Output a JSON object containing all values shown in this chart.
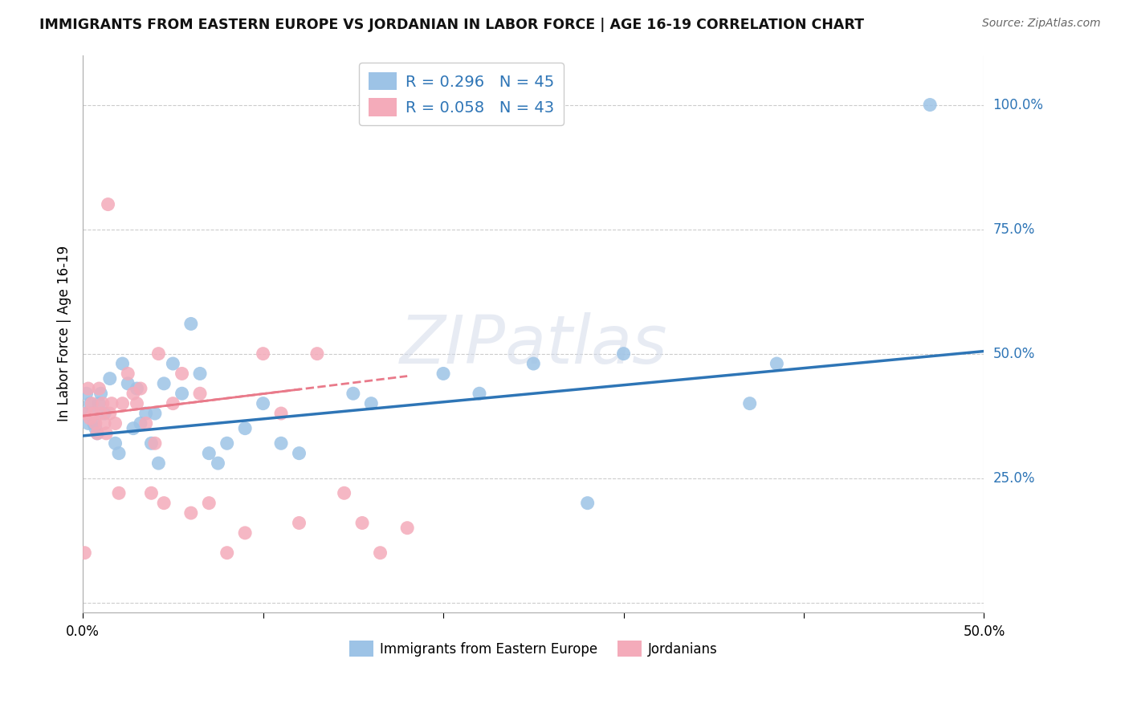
{
  "title": "IMMIGRANTS FROM EASTERN EUROPE VS JORDANIAN IN LABOR FORCE | AGE 16-19 CORRELATION CHART",
  "source": "Source: ZipAtlas.com",
  "ylabel": "In Labor Force | Age 16-19",
  "xlim": [
    0.0,
    0.5
  ],
  "ylim": [
    -0.02,
    1.1
  ],
  "xticks": [
    0.0,
    0.1,
    0.2,
    0.3,
    0.4,
    0.5
  ],
  "xticklabels": [
    "0.0%",
    "",
    "",
    "",
    "",
    "50.0%"
  ],
  "ytick_positions": [
    0.0,
    0.25,
    0.5,
    0.75,
    1.0
  ],
  "yticklabels": [
    "",
    "25.0%",
    "50.0%",
    "75.0%",
    "100.0%"
  ],
  "blue_R": 0.296,
  "blue_N": 45,
  "pink_R": 0.058,
  "pink_N": 43,
  "blue_color": "#9DC3E6",
  "pink_color": "#F4ABBA",
  "blue_line_color": "#2E75B6",
  "pink_line_color": "#E97A8A",
  "grid_color": "#CCCCCC",
  "watermark": "ZIPatlas",
  "blue_scatter_x": [
    0.001,
    0.002,
    0.003,
    0.004,
    0.005,
    0.006,
    0.007,
    0.008,
    0.009,
    0.01,
    0.012,
    0.015,
    0.018,
    0.02,
    0.022,
    0.025,
    0.028,
    0.03,
    0.032,
    0.035,
    0.038,
    0.04,
    0.042,
    0.045,
    0.05,
    0.055,
    0.06,
    0.065,
    0.07,
    0.075,
    0.08,
    0.09,
    0.1,
    0.11,
    0.12,
    0.15,
    0.16,
    0.2,
    0.22,
    0.25,
    0.28,
    0.3,
    0.37,
    0.385,
    0.47
  ],
  "blue_scatter_y": [
    0.38,
    0.42,
    0.36,
    0.4,
    0.38,
    0.36,
    0.35,
    0.34,
    0.4,
    0.42,
    0.38,
    0.45,
    0.32,
    0.3,
    0.48,
    0.44,
    0.35,
    0.43,
    0.36,
    0.38,
    0.32,
    0.38,
    0.28,
    0.44,
    0.48,
    0.42,
    0.56,
    0.46,
    0.3,
    0.28,
    0.32,
    0.35,
    0.4,
    0.32,
    0.3,
    0.42,
    0.4,
    0.46,
    0.42,
    0.48,
    0.2,
    0.5,
    0.4,
    0.48,
    1.0
  ],
  "pink_scatter_x": [
    0.001,
    0.002,
    0.003,
    0.004,
    0.005,
    0.006,
    0.007,
    0.008,
    0.009,
    0.01,
    0.011,
    0.012,
    0.013,
    0.014,
    0.015,
    0.016,
    0.018,
    0.02,
    0.022,
    0.025,
    0.028,
    0.03,
    0.032,
    0.035,
    0.038,
    0.04,
    0.042,
    0.045,
    0.05,
    0.055,
    0.06,
    0.065,
    0.07,
    0.08,
    0.09,
    0.1,
    0.11,
    0.12,
    0.13,
    0.145,
    0.155,
    0.165,
    0.18
  ],
  "pink_scatter_y": [
    0.1,
    0.38,
    0.43,
    0.37,
    0.4,
    0.38,
    0.36,
    0.34,
    0.43,
    0.38,
    0.4,
    0.36,
    0.34,
    0.8,
    0.38,
    0.4,
    0.36,
    0.22,
    0.4,
    0.46,
    0.42,
    0.4,
    0.43,
    0.36,
    0.22,
    0.32,
    0.5,
    0.2,
    0.4,
    0.46,
    0.18,
    0.42,
    0.2,
    0.1,
    0.14,
    0.5,
    0.38,
    0.16,
    0.5,
    0.22,
    0.16,
    0.1,
    0.15
  ],
  "blue_line_x": [
    0.0,
    0.5
  ],
  "blue_line_y": [
    0.335,
    0.505
  ],
  "pink_line_x": [
    0.0,
    0.18
  ],
  "pink_line_y": [
    0.375,
    0.455
  ]
}
